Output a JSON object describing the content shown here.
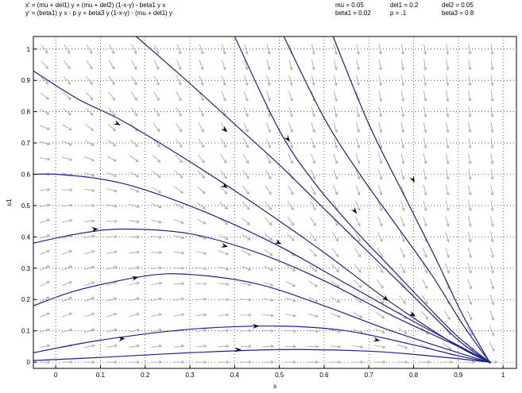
{
  "header": {
    "equations": [
      "x' = (mu + del1) y + (mu + del2) (1-x-y) - beta1 y x",
      "y' = (beta1) y x - p y + beta3 y (1-x-y) - (mu + del1) y"
    ],
    "params_row1": [
      "mu = 0.05",
      "del1 = 0.2",
      "del2 = 0.05"
    ],
    "params_row2": [
      "beta1 = 0.02",
      "p = .1",
      "beta3 = 0.8"
    ]
  },
  "chart_data": {
    "type": "line",
    "title": "",
    "xlabel": "s",
    "ylabel": "u1",
    "xlim": [
      -0.05,
      1.03
    ],
    "ylim": [
      -0.02,
      1.04
    ],
    "xticks": [
      "0",
      "0.1",
      "0.2",
      "0.3",
      "0.4",
      "0.5",
      "0.6",
      "0.7",
      "0.8",
      "0.9",
      "1"
    ],
    "yticks": [
      "0",
      "0.1",
      "0.2",
      "0.3",
      "0.4",
      "0.5",
      "0.6",
      "0.7",
      "0.8",
      "0.9",
      "1"
    ],
    "grid": true,
    "equilibrium": [
      0.97,
      0.0
    ],
    "trajectory_color": "#1f1f8f",
    "vector_color": "#aaaaaa",
    "series": [
      {
        "x": [
          -0.05,
          0.1,
          0.3,
          0.5,
          0.7,
          0.85,
          0.97
        ],
        "y": [
          0.005,
          0.015,
          0.03,
          0.04,
          0.035,
          0.018,
          0.0
        ],
        "arrow_at": [
          0.41,
          0.04
        ]
      },
      {
        "x": [
          -0.05,
          0.1,
          0.3,
          0.5,
          0.65,
          0.8,
          0.9,
          0.97
        ],
        "y": [
          0.03,
          0.07,
          0.105,
          0.115,
          0.1,
          0.055,
          0.02,
          0.0
        ],
        "arrows_at": [
          [
            0.15,
            0.075
          ],
          [
            0.45,
            0.115
          ],
          [
            0.72,
            0.07
          ]
        ]
      },
      {
        "x": [
          -0.05,
          0.05,
          0.2,
          0.3,
          0.45,
          0.6,
          0.75,
          0.9,
          0.97
        ],
        "y": [
          0.18,
          0.23,
          0.275,
          0.28,
          0.25,
          0.18,
          0.1,
          0.03,
          0.0
        ],
        "arrow_at": [
          0.18,
          0.27
        ]
      },
      {
        "x": [
          -0.05,
          0.05,
          0.15,
          0.3,
          0.45,
          0.6,
          0.75,
          0.9,
          0.97
        ],
        "y": [
          0.38,
          0.41,
          0.425,
          0.41,
          0.35,
          0.26,
          0.15,
          0.05,
          0.0
        ],
        "arrows_at": [
          [
            0.09,
            0.425
          ],
          [
            0.38,
            0.37
          ]
        ]
      },
      {
        "x": [
          -0.05,
          0.0,
          0.1,
          0.2,
          0.35,
          0.5,
          0.65,
          0.8,
          0.97
        ],
        "y": [
          0.6,
          0.6,
          0.585,
          0.55,
          0.47,
          0.37,
          0.25,
          0.13,
          0.0
        ],
        "arrows_at": [
          [
            0.5,
            0.38
          ],
          [
            0.8,
            0.15
          ]
        ]
      },
      {
        "x": [
          -0.05,
          0.05,
          0.15,
          0.3,
          0.45,
          0.6,
          0.75,
          0.9,
          0.97
        ],
        "y": [
          0.93,
          0.84,
          0.77,
          0.64,
          0.5,
          0.35,
          0.19,
          0.05,
          0.0
        ],
        "arrows_at": [
          [
            0.14,
            0.76
          ],
          [
            0.38,
            0.56
          ],
          [
            0.74,
            0.2
          ]
        ]
      },
      {
        "x": [
          0.18,
          0.3,
          0.4,
          0.5,
          0.6,
          0.7,
          0.8,
          0.9,
          0.97
        ],
        "y": [
          1.04,
          0.89,
          0.76,
          0.63,
          0.49,
          0.35,
          0.21,
          0.07,
          0.0
        ],
        "arrow_at": [
          0.38,
          0.74
        ]
      },
      {
        "x": [
          0.4,
          0.5,
          0.58,
          0.67,
          0.75,
          0.83,
          0.9,
          0.97
        ],
        "y": [
          1.04,
          0.74,
          0.57,
          0.42,
          0.3,
          0.18,
          0.08,
          0.0
        ],
        "arrow_at": [
          0.52,
          0.71
        ]
      },
      {
        "x": [
          0.51,
          0.6,
          0.68,
          0.76,
          0.84,
          0.91,
          0.97
        ],
        "y": [
          1.04,
          0.78,
          0.6,
          0.44,
          0.28,
          0.12,
          0.0
        ],
        "arrow_at": [
          0.67,
          0.48
        ]
      },
      {
        "x": [
          0.62,
          0.7,
          0.78,
          0.85,
          0.91,
          0.97
        ],
        "y": [
          1.04,
          0.76,
          0.53,
          0.33,
          0.15,
          0.0
        ],
        "arrow_at": [
          0.8,
          0.58
        ]
      }
    ]
  }
}
